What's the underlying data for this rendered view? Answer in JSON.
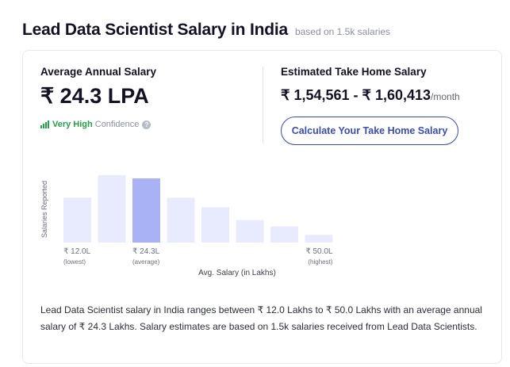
{
  "header": {
    "title": "Lead Data Scientist Salary in India",
    "subtitle": "based on 1.5k salaries"
  },
  "average": {
    "label": "Average Annual Salary",
    "value": "₹ 24.3 LPA",
    "confidence_level": "Very High",
    "confidence_word": "Confidence",
    "help_icon": "?"
  },
  "take_home": {
    "label": "Estimated Take Home Salary",
    "value": "₹ 1,54,561 - ₹ 1,60,413",
    "unit": "/month",
    "button_label": "Calculate Your Take Home Salary"
  },
  "colors": {
    "bar": "#e8ebfd",
    "bar_highlight": "#a9b2f4",
    "accent": "#3b4da8",
    "confidence": "#2a9d4a"
  },
  "chart_data": {
    "type": "bar",
    "ylabel": "Salaries Reported",
    "xlabel": "Avg. Salary (in Lakhs)",
    "values": [
      7,
      10.5,
      10,
      7,
      5.5,
      3.5,
      2.5,
      1.2
    ],
    "highlight_index": 2,
    "tick_labels": [
      {
        "index": 0,
        "value": "₹ 12.0L",
        "note": "(lowest)"
      },
      {
        "index": 2,
        "value": "₹ 24.3L",
        "note": "(average)"
      },
      {
        "index": 7,
        "value": "₹ 50.0L",
        "note": "(highest)"
      }
    ]
  },
  "description": "Lead Data Scientist salary in India ranges between ₹ 12.0 Lakhs to ₹ 50.0 Lakhs with an average annual salary of ₹ 24.3 Lakhs. Salary estimates are based on 1.5k salaries received from Lead Data Scientists."
}
